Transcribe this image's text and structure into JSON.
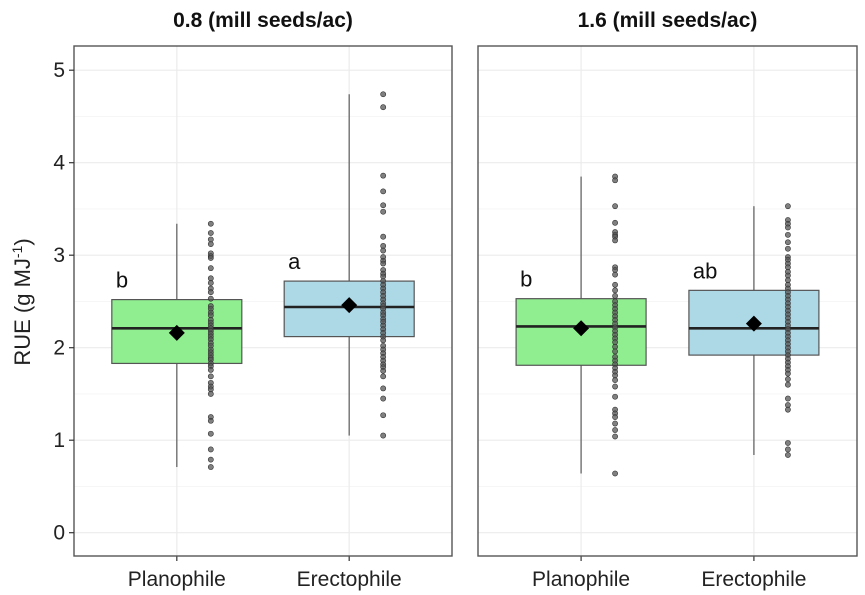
{
  "chart_data": {
    "type": "boxplot",
    "ylabel_main": "RUE (g MJ",
    "ylabel_sup": "-1",
    "ylabel_end": ")",
    "ylim": [
      -0.25,
      5.25
    ],
    "yticks": [
      0,
      1,
      2,
      3,
      4,
      5
    ],
    "grid": true,
    "colors": {
      "Planophile": "#90ee90",
      "Erectophile": "#add8e6"
    },
    "categories": [
      "Planophile",
      "Erectophile"
    ],
    "panels": [
      {
        "title": "0.8 (mill seeds/ac)",
        "groups": [
          {
            "category": "Planophile",
            "min": 0.71,
            "q1": 1.83,
            "median": 2.21,
            "q3": 2.52,
            "max": 3.34,
            "mean": 2.16,
            "letter": "b",
            "points": [
              3.34,
              3.24,
              3.17,
              3.12,
              3.02,
              2.99,
              2.97,
              2.86,
              2.75,
              2.7,
              2.64,
              2.6,
              2.53,
              2.45,
              2.42,
              2.38,
              2.35,
              2.3,
              2.27,
              2.24,
              2.21,
              2.18,
              2.15,
              2.12,
              2.09,
              2.05,
              2.02,
              1.98,
              1.95,
              1.92,
              1.89,
              1.87,
              1.83,
              1.8,
              1.76,
              1.69,
              1.62,
              1.58,
              1.55,
              1.5,
              1.25,
              1.21,
              1.07,
              0.9,
              0.79,
              0.71
            ]
          },
          {
            "category": "Erectophile",
            "min": 1.05,
            "q1": 2.12,
            "median": 2.44,
            "q3": 2.72,
            "max": 4.74,
            "mean": 2.46,
            "letter": "a",
            "points": [
              4.74,
              4.6,
              3.86,
              3.69,
              3.54,
              3.47,
              3.2,
              3.1,
              3.05,
              2.98,
              2.94,
              2.91,
              2.84,
              2.8,
              2.77,
              2.72,
              2.68,
              2.64,
              2.6,
              2.56,
              2.52,
              2.48,
              2.45,
              2.42,
              2.38,
              2.35,
              2.31,
              2.28,
              2.24,
              2.2,
              2.16,
              2.12,
              2.08,
              2.02,
              1.98,
              1.94,
              1.9,
              1.86,
              1.82,
              1.79,
              1.75,
              1.69,
              1.56,
              1.45,
              1.27,
              1.05
            ]
          }
        ]
      },
      {
        "title": "1.6 (mill seeds/ac)",
        "groups": [
          {
            "category": "Planophile",
            "min": 0.64,
            "q1": 1.81,
            "median": 2.23,
            "q3": 2.53,
            "max": 3.85,
            "mean": 2.21,
            "letter": "b",
            "points": [
              3.85,
              3.81,
              3.53,
              3.35,
              3.25,
              3.22,
              3.2,
              3.16,
              2.87,
              2.84,
              2.79,
              2.68,
              2.62,
              2.56,
              2.5,
              2.46,
              2.42,
              2.38,
              2.34,
              2.3,
              2.26,
              2.22,
              2.18,
              2.14,
              2.1,
              2.06,
              2.01,
              1.96,
              1.9,
              1.86,
              1.82,
              1.78,
              1.74,
              1.7,
              1.65,
              1.58,
              1.47,
              1.33,
              1.29,
              1.25,
              1.18,
              1.11,
              1.04,
              0.64
            ]
          },
          {
            "category": "Erectophile",
            "min": 0.84,
            "q1": 1.92,
            "median": 2.21,
            "q3": 2.62,
            "max": 3.53,
            "mean": 2.26,
            "letter": "ab",
            "points": [
              3.53,
              3.38,
              3.34,
              3.3,
              3.22,
              3.14,
              3.07,
              2.98,
              2.95,
              2.91,
              2.87,
              2.82,
              2.78,
              2.73,
              2.68,
              2.64,
              2.6,
              2.56,
              2.52,
              2.48,
              2.44,
              2.4,
              2.36,
              2.32,
              2.28,
              2.24,
              2.2,
              2.16,
              2.12,
              2.08,
              2.04,
              2.0,
              1.96,
              1.92,
              1.88,
              1.84,
              1.8,
              1.76,
              1.72,
              1.66,
              1.6,
              1.45,
              1.38,
              1.33,
              0.97,
              0.9,
              0.84
            ]
          }
        ]
      }
    ]
  }
}
